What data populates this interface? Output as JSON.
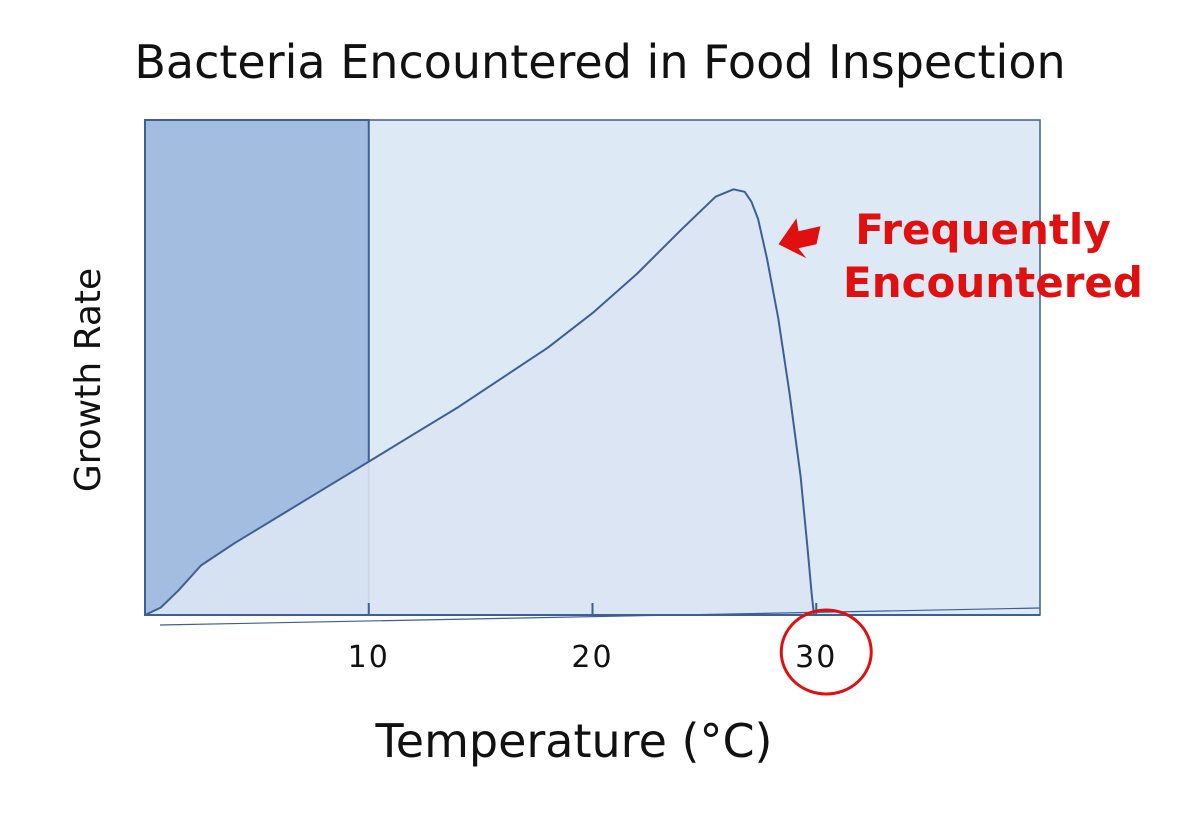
{
  "chart_data": {
    "type": "area",
    "title": "Bacteria Encountered in Food Inspection",
    "xlabel": "Temperature (°C)",
    "ylabel": "Growth Rate",
    "xlim": [
      0,
      40
    ],
    "ylim": [
      0,
      100
    ],
    "x_ticks": [
      10,
      20,
      30
    ],
    "x_tick_labels": [
      "10",
      "20",
      "30"
    ],
    "highlight_band": {
      "x_from": 0,
      "x_to": 10
    },
    "highlight_tick": "30",
    "series": [
      {
        "x": [
          0,
          0.7,
          1.5,
          2.5,
          4,
          6,
          8,
          10,
          12,
          14,
          16,
          18,
          20,
          22,
          24,
          25.5,
          26.3,
          26.8,
          27.1,
          27.4,
          27.8,
          28.3,
          28.8,
          29.3,
          29.6,
          29.8,
          29.9
        ],
        "y": [
          0,
          1.5,
          5,
          10,
          14.5,
          20,
          25.5,
          31,
          36.5,
          42,
          48,
          54,
          61,
          69,
          78,
          84.5,
          86,
          85.5,
          83.5,
          80,
          72,
          60,
          45,
          28,
          14,
          4,
          0
        ]
      }
    ],
    "annotations": [
      {
        "text_lines": [
          "Frequently",
          "Encountered"
        ],
        "color": "#e01010",
        "points_to": "peak"
      }
    ],
    "colors": {
      "plot_background": "#dde9f5",
      "band_fill": "#a3bde0",
      "area_fill": "#dbe4f3",
      "line": "#3d5f95",
      "annotation": "#e01010"
    },
    "grid": false,
    "legend": "none"
  }
}
